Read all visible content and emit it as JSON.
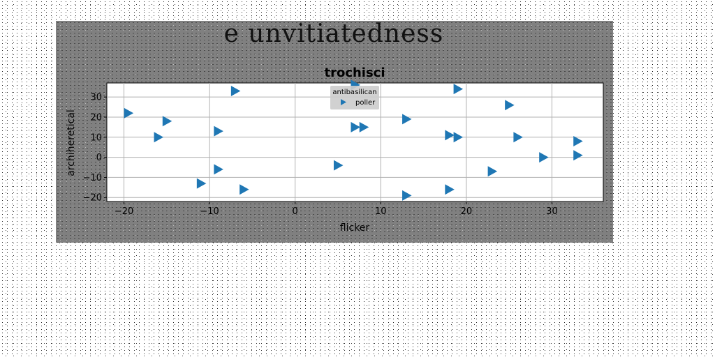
{
  "figure": {
    "suptitle": "e unvitiatedness"
  },
  "chart_data": {
    "type": "scatter",
    "title": "trochisci",
    "xlabel": "flicker",
    "ylabel": "archiheretical",
    "xlim": [
      -22,
      36
    ],
    "ylim": [
      -22,
      37
    ],
    "xticks": [
      -20,
      -10,
      0,
      10,
      20,
      30
    ],
    "yticks": [
      -20,
      -10,
      0,
      10,
      20,
      30
    ],
    "grid": true,
    "legend": {
      "title": "antibasilican",
      "placement": "top-center"
    },
    "marker": "triangle-right",
    "colors": {
      "series": "#1f77b4",
      "plot_bg": "#ffffff",
      "grid": "#b0b0b0",
      "legend_bg": "#cccccc"
    },
    "series": [
      {
        "name": "poller",
        "points": [
          [
            -19.5,
            22
          ],
          [
            -7,
            33
          ],
          [
            -15,
            18
          ],
          [
            -16,
            10
          ],
          [
            -9,
            13
          ],
          [
            -9,
            -6
          ],
          [
            -11,
            -13
          ],
          [
            -6,
            -16
          ],
          [
            5,
            -4
          ],
          [
            7,
            15
          ],
          [
            8,
            15
          ],
          [
            13,
            19
          ],
          [
            13,
            -19
          ],
          [
            18,
            11
          ],
          [
            19,
            10
          ],
          [
            18,
            -16
          ],
          [
            19,
            34
          ],
          [
            25,
            26
          ],
          [
            26,
            10
          ],
          [
            23,
            -7
          ],
          [
            29,
            0
          ],
          [
            33,
            8
          ],
          [
            33,
            1
          ],
          [
            7,
            36
          ]
        ]
      }
    ]
  }
}
